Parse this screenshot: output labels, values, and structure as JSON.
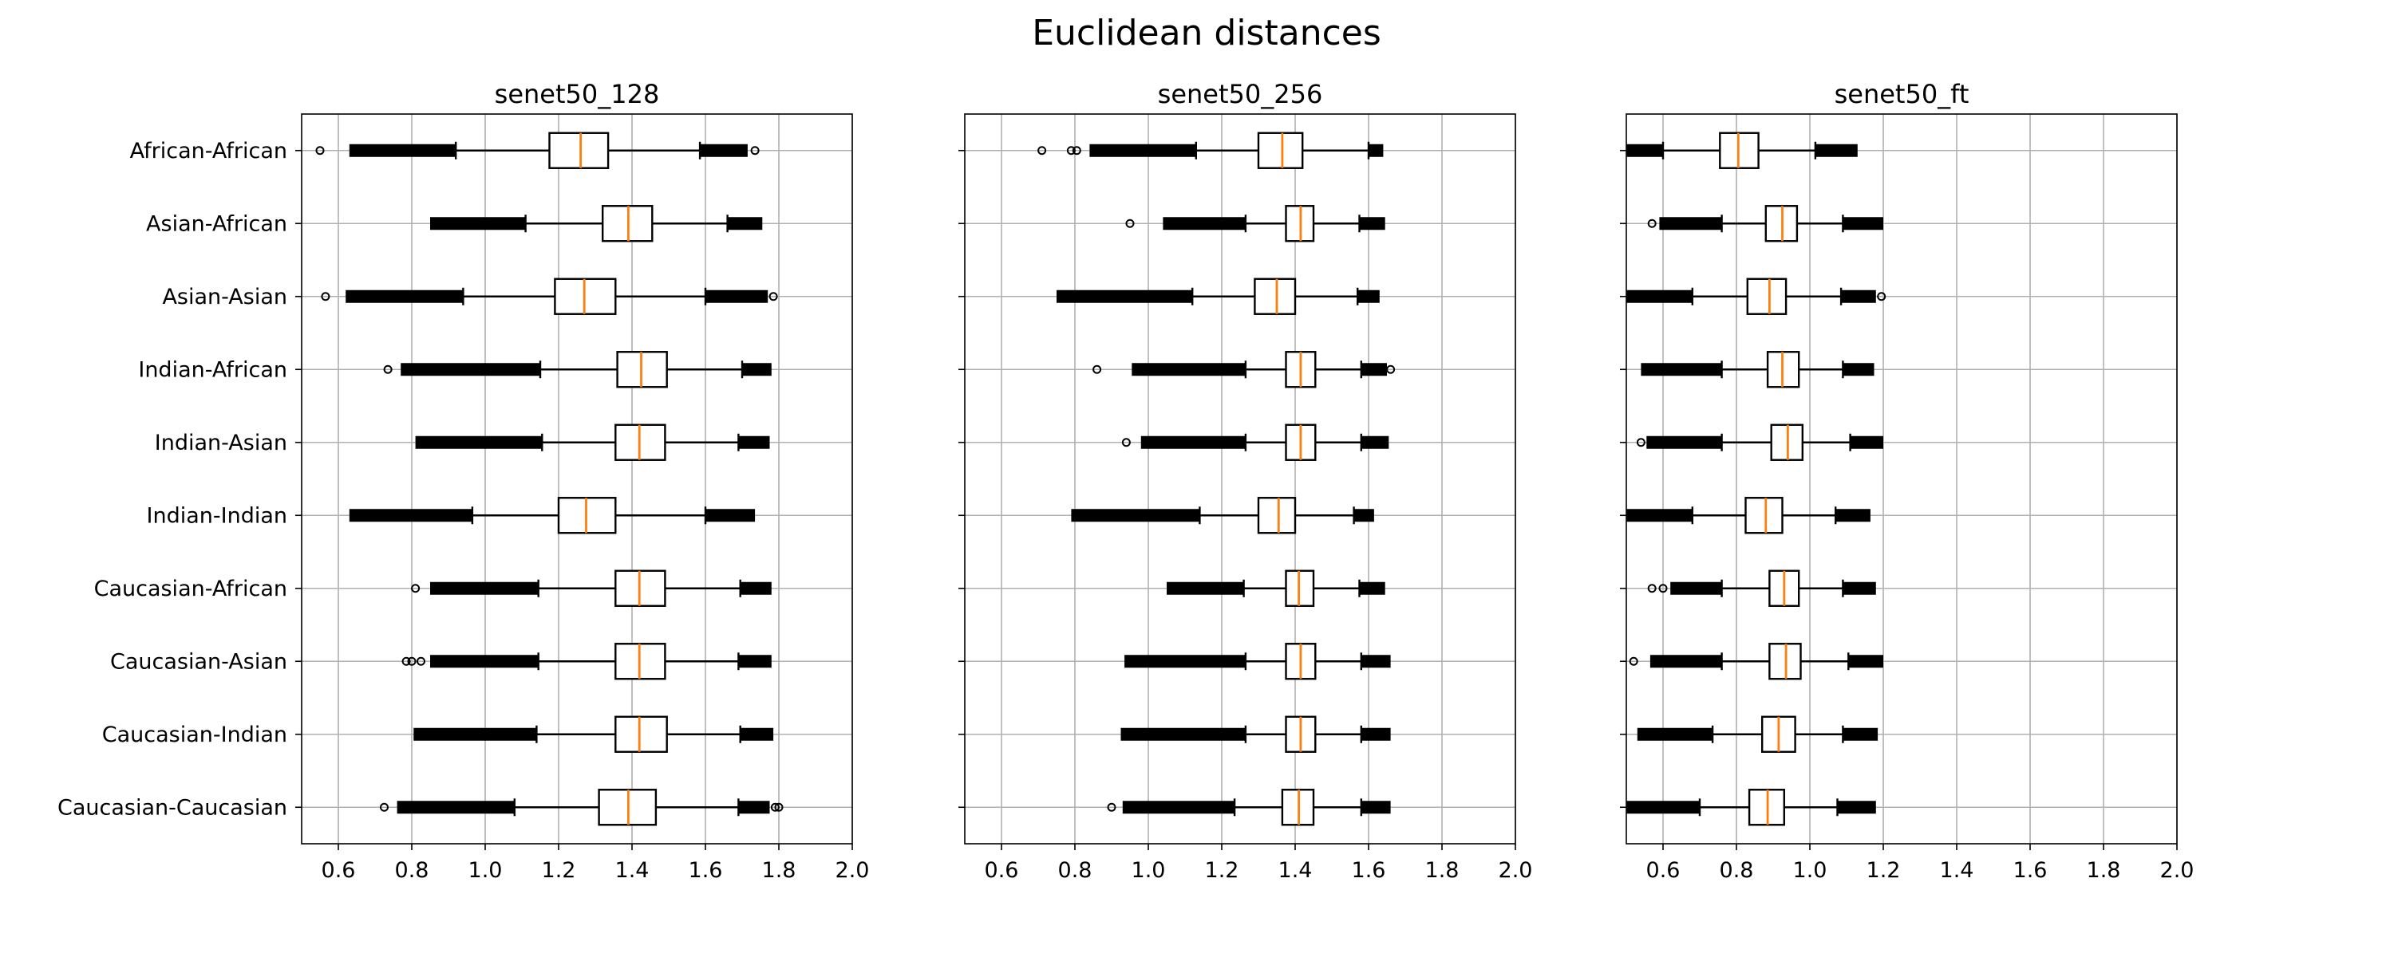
{
  "figure_title": "Euclidean distances",
  "chart_data": [
    {
      "type": "boxplot",
      "orientation": "horizontal",
      "title": "senet50_128",
      "xlim": [
        0.5,
        2.0
      ],
      "xticks": [
        0.6,
        0.8,
        1.0,
        1.2,
        1.4,
        1.6,
        1.8,
        2.0
      ],
      "xtick_labels": [
        "0.6",
        "0.8",
        "1.0",
        "1.2",
        "1.4",
        "1.6",
        "1.8",
        "2.0"
      ],
      "grid": true,
      "show_category_labels": true,
      "categories": [
        "African-African",
        "Asian-African",
        "Asian-Asian",
        "Indian-African",
        "Indian-Asian",
        "Indian-Indian",
        "Caucasian-African",
        "Caucasian-Asian",
        "Caucasian-Indian",
        "Caucasian-Caucasian"
      ],
      "boxes": [
        {
          "whislo": 0.92,
          "q1": 1.175,
          "med": 1.26,
          "q3": 1.335,
          "whishi": 1.585,
          "low_band": [
            0.63,
            0.92
          ],
          "high_band": [
            1.585,
            1.715
          ],
          "low_pts": [
            0.55
          ],
          "high_pts": [
            1.735
          ]
        },
        {
          "whislo": 1.11,
          "q1": 1.32,
          "med": 1.39,
          "q3": 1.455,
          "whishi": 1.66,
          "low_band": [
            0.85,
            1.11
          ],
          "high_band": [
            1.66,
            1.755
          ],
          "low_pts": [],
          "high_pts": []
        },
        {
          "whislo": 0.94,
          "q1": 1.19,
          "med": 1.27,
          "q3": 1.355,
          "whishi": 1.6,
          "low_band": [
            0.62,
            0.94
          ],
          "high_band": [
            1.6,
            1.77
          ],
          "low_pts": [
            0.565
          ],
          "high_pts": [
            1.785
          ]
        },
        {
          "whislo": 1.15,
          "q1": 1.36,
          "med": 1.425,
          "q3": 1.495,
          "whishi": 1.7,
          "low_band": [
            0.77,
            1.15
          ],
          "high_band": [
            1.7,
            1.78
          ],
          "low_pts": [
            0.735
          ],
          "high_pts": []
        },
        {
          "whislo": 1.155,
          "q1": 1.355,
          "med": 1.42,
          "q3": 1.49,
          "whishi": 1.69,
          "low_band": [
            0.81,
            1.155
          ],
          "high_band": [
            1.69,
            1.775
          ],
          "low_pts": [],
          "high_pts": []
        },
        {
          "whislo": 0.965,
          "q1": 1.2,
          "med": 1.275,
          "q3": 1.355,
          "whishi": 1.6,
          "low_band": [
            0.63,
            0.965
          ],
          "high_band": [
            1.6,
            1.735
          ],
          "low_pts": [],
          "high_pts": []
        },
        {
          "whislo": 1.145,
          "q1": 1.355,
          "med": 1.42,
          "q3": 1.49,
          "whishi": 1.695,
          "low_band": [
            0.85,
            1.145
          ],
          "high_band": [
            1.695,
            1.78
          ],
          "low_pts": [
            0.81
          ],
          "high_pts": []
        },
        {
          "whislo": 1.145,
          "q1": 1.355,
          "med": 1.42,
          "q3": 1.49,
          "whishi": 1.69,
          "low_band": [
            0.85,
            1.145
          ],
          "high_band": [
            1.69,
            1.78
          ],
          "low_pts": [
            0.785,
            0.8,
            0.825
          ],
          "high_pts": []
        },
        {
          "whislo": 1.14,
          "q1": 1.355,
          "med": 1.42,
          "q3": 1.495,
          "whishi": 1.695,
          "low_band": [
            0.805,
            1.14
          ],
          "high_band": [
            1.695,
            1.785
          ],
          "low_pts": [],
          "high_pts": []
        },
        {
          "whislo": 1.08,
          "q1": 1.31,
          "med": 1.39,
          "q3": 1.465,
          "whishi": 1.69,
          "low_band": [
            0.76,
            1.08
          ],
          "high_band": [
            1.69,
            1.775
          ],
          "low_pts": [
            0.725
          ],
          "high_pts": [
            1.79,
            1.8
          ]
        }
      ]
    },
    {
      "type": "boxplot",
      "orientation": "horizontal",
      "title": "senet50_256",
      "xlim": [
        0.5,
        2.0
      ],
      "xticks": [
        0.6,
        0.8,
        1.0,
        1.2,
        1.4,
        1.6,
        1.8,
        2.0
      ],
      "xtick_labels": [
        "0.6",
        "0.8",
        "1.0",
        "1.2",
        "1.4",
        "1.6",
        "1.8",
        "2.0"
      ],
      "grid": true,
      "show_category_labels": false,
      "categories": [
        "African-African",
        "Asian-African",
        "Asian-Asian",
        "Indian-African",
        "Indian-Asian",
        "Indian-Indian",
        "Caucasian-African",
        "Caucasian-Asian",
        "Caucasian-Indian",
        "Caucasian-Caucasian"
      ],
      "boxes": [
        {
          "whislo": 1.13,
          "q1": 1.3,
          "med": 1.365,
          "q3": 1.42,
          "whishi": 1.6,
          "low_band": [
            0.84,
            1.13
          ],
          "high_band": [
            1.6,
            1.64
          ],
          "low_pts": [
            0.71,
            0.79,
            0.805
          ],
          "high_pts": []
        },
        {
          "whislo": 1.265,
          "q1": 1.375,
          "med": 1.415,
          "q3": 1.45,
          "whishi": 1.575,
          "low_band": [
            1.04,
            1.265
          ],
          "high_band": [
            1.575,
            1.645
          ],
          "low_pts": [
            0.95
          ],
          "high_pts": []
        },
        {
          "whislo": 1.12,
          "q1": 1.29,
          "med": 1.35,
          "q3": 1.4,
          "whishi": 1.57,
          "low_band": [
            0.75,
            1.12
          ],
          "high_band": [
            1.57,
            1.63
          ],
          "low_pts": [],
          "high_pts": []
        },
        {
          "whislo": 1.265,
          "q1": 1.375,
          "med": 1.415,
          "q3": 1.455,
          "whishi": 1.58,
          "low_band": [
            0.955,
            1.265
          ],
          "high_band": [
            1.58,
            1.65
          ],
          "low_pts": [
            0.86
          ],
          "high_pts": [
            1.66
          ]
        },
        {
          "whislo": 1.265,
          "q1": 1.375,
          "med": 1.415,
          "q3": 1.455,
          "whishi": 1.58,
          "low_band": [
            0.98,
            1.265
          ],
          "high_band": [
            1.58,
            1.655
          ],
          "low_pts": [
            0.94
          ],
          "high_pts": []
        },
        {
          "whislo": 1.14,
          "q1": 1.3,
          "med": 1.355,
          "q3": 1.4,
          "whishi": 1.56,
          "low_band": [
            0.79,
            1.14
          ],
          "high_band": [
            1.56,
            1.615
          ],
          "low_pts": [],
          "high_pts": []
        },
        {
          "whislo": 1.26,
          "q1": 1.375,
          "med": 1.41,
          "q3": 1.45,
          "whishi": 1.575,
          "low_band": [
            1.05,
            1.26
          ],
          "high_band": [
            1.575,
            1.645
          ],
          "low_pts": [],
          "high_pts": []
        },
        {
          "whislo": 1.265,
          "q1": 1.375,
          "med": 1.415,
          "q3": 1.455,
          "whishi": 1.58,
          "low_band": [
            0.935,
            1.265
          ],
          "high_band": [
            1.58,
            1.66
          ],
          "low_pts": [],
          "high_pts": []
        },
        {
          "whislo": 1.265,
          "q1": 1.375,
          "med": 1.415,
          "q3": 1.455,
          "whishi": 1.58,
          "low_band": [
            0.925,
            1.265
          ],
          "high_band": [
            1.58,
            1.66
          ],
          "low_pts": [],
          "high_pts": []
        },
        {
          "whislo": 1.235,
          "q1": 1.365,
          "med": 1.41,
          "q3": 1.45,
          "whishi": 1.58,
          "low_band": [
            0.93,
            1.235
          ],
          "high_band": [
            1.58,
            1.66
          ],
          "low_pts": [
            0.9
          ],
          "high_pts": []
        }
      ]
    },
    {
      "type": "boxplot",
      "orientation": "horizontal",
      "title": "senet50_ft",
      "xlim": [
        0.5,
        2.0
      ],
      "xticks": [
        0.6,
        0.8,
        1.0,
        1.2,
        1.4,
        1.6,
        1.8,
        2.0
      ],
      "xtick_labels": [
        "0.6",
        "0.8",
        "1.0",
        "1.2",
        "1.4",
        "1.6",
        "1.8",
        "2.0"
      ],
      "grid": true,
      "show_category_labels": false,
      "categories": [
        "African-African",
        "Asian-African",
        "Asian-Asian",
        "Indian-African",
        "Indian-Asian",
        "Indian-Indian",
        "Caucasian-African",
        "Caucasian-Asian",
        "Caucasian-Indian",
        "Caucasian-Caucasian"
      ],
      "boxes": [
        {
          "whislo": 0.6,
          "q1": 0.755,
          "med": 0.805,
          "q3": 0.86,
          "whishi": 1.015,
          "low_band": [
            0.5,
            0.6
          ],
          "high_band": [
            1.015,
            1.13
          ],
          "low_pts": [],
          "high_pts": []
        },
        {
          "whislo": 0.76,
          "q1": 0.88,
          "med": 0.925,
          "q3": 0.965,
          "whishi": 1.09,
          "low_band": [
            0.59,
            0.76
          ],
          "high_band": [
            1.09,
            1.2
          ],
          "low_pts": [
            0.57
          ],
          "high_pts": []
        },
        {
          "whislo": 0.68,
          "q1": 0.83,
          "med": 0.89,
          "q3": 0.935,
          "whishi": 1.085,
          "low_band": [
            0.5,
            0.68
          ],
          "high_band": [
            1.085,
            1.18
          ],
          "low_pts": [],
          "high_pts": [
            1.195
          ]
        },
        {
          "whislo": 0.76,
          "q1": 0.885,
          "med": 0.925,
          "q3": 0.97,
          "whishi": 1.09,
          "low_band": [
            0.54,
            0.76
          ],
          "high_band": [
            1.09,
            1.175
          ],
          "low_pts": [],
          "high_pts": []
        },
        {
          "whislo": 0.76,
          "q1": 0.895,
          "med": 0.94,
          "q3": 0.98,
          "whishi": 1.11,
          "low_band": [
            0.555,
            0.76
          ],
          "high_band": [
            1.11,
            1.2
          ],
          "low_pts": [
            0.54
          ],
          "high_pts": []
        },
        {
          "whislo": 0.68,
          "q1": 0.825,
          "med": 0.88,
          "q3": 0.925,
          "whishi": 1.07,
          "low_band": [
            0.5,
            0.68
          ],
          "high_band": [
            1.07,
            1.165
          ],
          "low_pts": [],
          "high_pts": []
        },
        {
          "whislo": 0.76,
          "q1": 0.89,
          "med": 0.93,
          "q3": 0.97,
          "whishi": 1.09,
          "low_band": [
            0.62,
            0.76
          ],
          "high_band": [
            1.09,
            1.18
          ],
          "low_pts": [
            0.57,
            0.6
          ],
          "high_pts": []
        },
        {
          "whislo": 0.76,
          "q1": 0.89,
          "med": 0.935,
          "q3": 0.975,
          "whishi": 1.105,
          "low_band": [
            0.565,
            0.76
          ],
          "high_band": [
            1.105,
            1.2
          ],
          "low_pts": [
            0.52
          ],
          "high_pts": []
        },
        {
          "whislo": 0.735,
          "q1": 0.87,
          "med": 0.915,
          "q3": 0.96,
          "whishi": 1.09,
          "low_band": [
            0.53,
            0.735
          ],
          "high_band": [
            1.09,
            1.185
          ],
          "low_pts": [],
          "high_pts": []
        },
        {
          "whislo": 0.7,
          "q1": 0.835,
          "med": 0.885,
          "q3": 0.93,
          "whishi": 1.075,
          "low_band": [
            0.5,
            0.7
          ],
          "high_band": [
            1.075,
            1.18
          ],
          "low_pts": [],
          "high_pts": []
        }
      ]
    }
  ]
}
